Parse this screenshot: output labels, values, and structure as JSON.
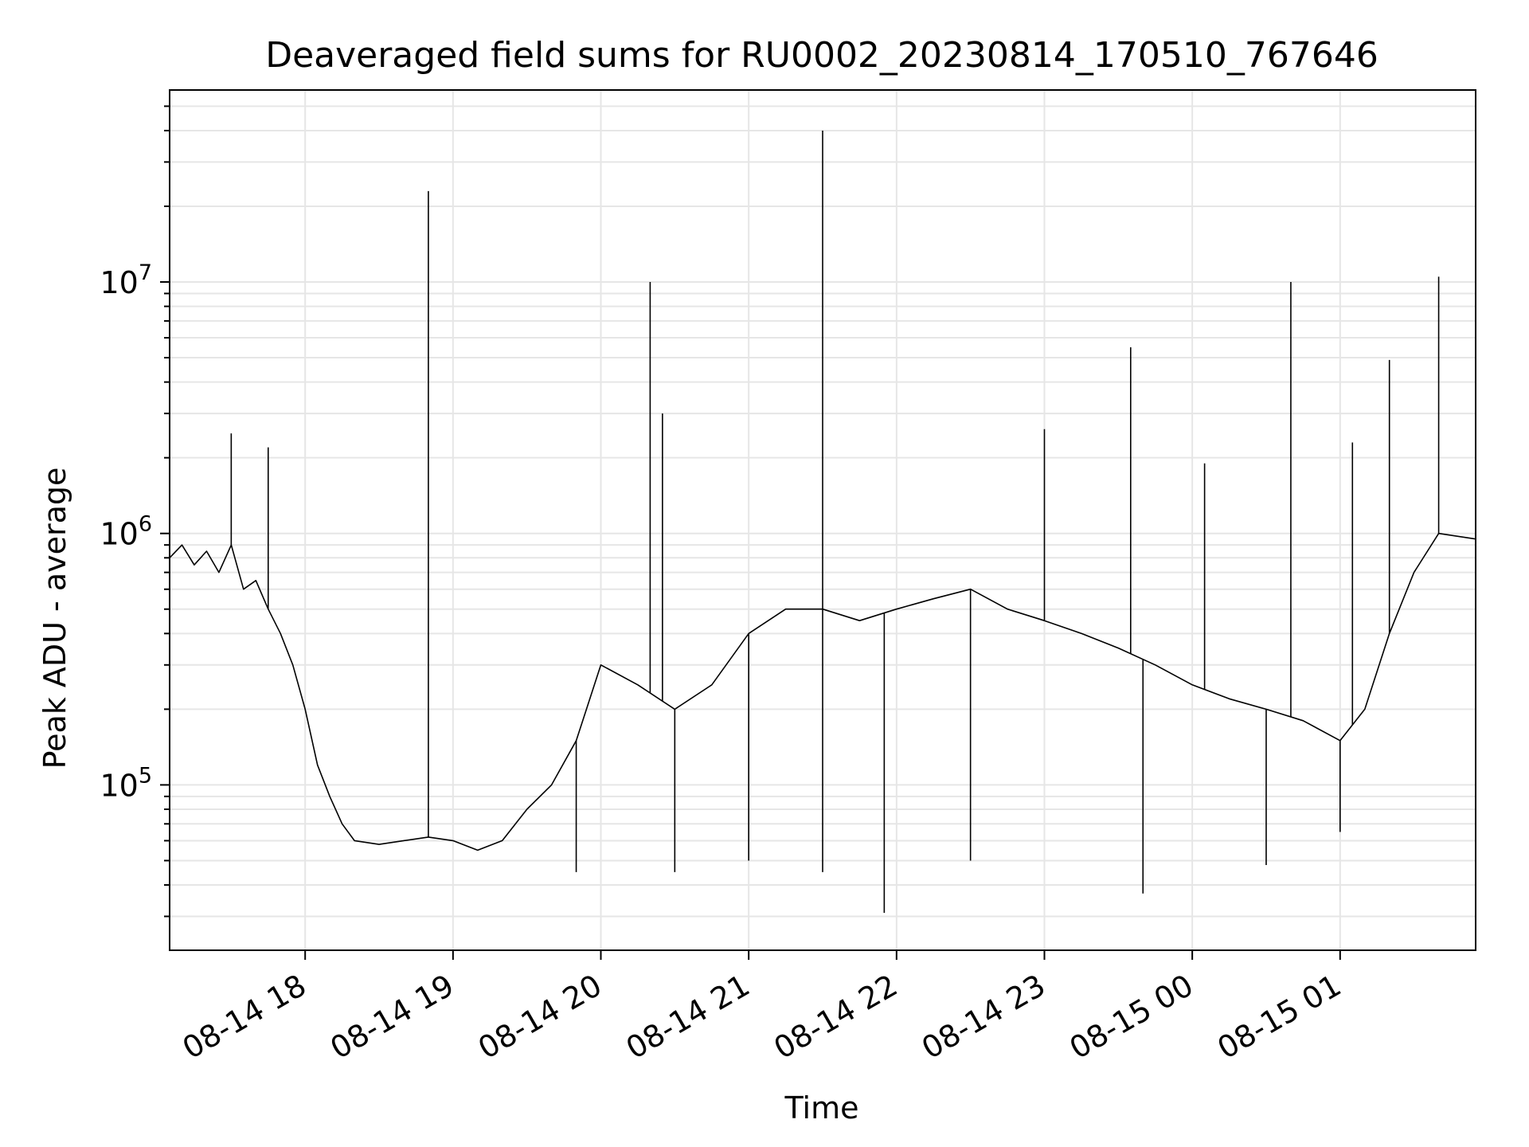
{
  "chart_data": {
    "type": "line",
    "title": "Deaveraged field sums for RU0002_20230814_170510_767646",
    "xlabel": "Time",
    "ylabel": "Peak ADU - average",
    "yscale": "log",
    "xlim": [
      "2023-08-14 17:05",
      "2023-08-15 01:55"
    ],
    "ylim": [
      22000,
      58000000
    ],
    "grid": true,
    "legend": "none",
    "colors": {
      "line": "#000000",
      "grid": "#e6e6e6",
      "axis": "#000000"
    },
    "x_ticks": [
      {
        "value": "2023-08-14 18:00",
        "label": "08-14 18"
      },
      {
        "value": "2023-08-14 19:00",
        "label": "08-14 19"
      },
      {
        "value": "2023-08-14 20:00",
        "label": "08-14 20"
      },
      {
        "value": "2023-08-14 21:00",
        "label": "08-14 21"
      },
      {
        "value": "2023-08-14 22:00",
        "label": "08-14 22"
      },
      {
        "value": "2023-08-14 23:00",
        "label": "08-14 23"
      },
      {
        "value": "2023-08-15 00:00",
        "label": "08-15 00"
      },
      {
        "value": "2023-08-15 01:00",
        "label": "08-15 01"
      }
    ],
    "y_ticks": [
      {
        "value": 100000,
        "base": "10",
        "exp": "5"
      },
      {
        "value": 1000000,
        "base": "10",
        "exp": "6"
      },
      {
        "value": 10000000,
        "base": "10",
        "exp": "7"
      }
    ],
    "series": [
      {
        "points": [
          [
            "2023-08-14 17:05",
            800000
          ],
          [
            "2023-08-14 17:10",
            900000
          ],
          [
            "2023-08-14 17:15",
            750000
          ],
          [
            "2023-08-14 17:20",
            850000
          ],
          [
            "2023-08-14 17:25",
            700000
          ],
          [
            "2023-08-14 17:30",
            900000
          ],
          [
            "2023-08-14 17:35",
            600000
          ],
          [
            "2023-08-14 17:40",
            650000
          ],
          [
            "2023-08-14 17:45",
            500000
          ],
          [
            "2023-08-14 17:50",
            400000
          ],
          [
            "2023-08-14 17:55",
            300000
          ],
          [
            "2023-08-14 18:00",
            200000
          ],
          [
            "2023-08-14 18:05",
            120000
          ],
          [
            "2023-08-14 18:10",
            90000
          ],
          [
            "2023-08-14 18:15",
            70000
          ],
          [
            "2023-08-14 18:20",
            60000
          ],
          [
            "2023-08-14 18:30",
            58000
          ],
          [
            "2023-08-14 18:40",
            60000
          ],
          [
            "2023-08-14 18:50",
            62000
          ],
          [
            "2023-08-14 19:00",
            60000
          ],
          [
            "2023-08-14 19:10",
            55000
          ],
          [
            "2023-08-14 19:20",
            60000
          ],
          [
            "2023-08-14 19:30",
            80000
          ],
          [
            "2023-08-14 19:40",
            100000
          ],
          [
            "2023-08-14 19:50",
            150000
          ],
          [
            "2023-08-14 20:00",
            300000
          ],
          [
            "2023-08-14 20:15",
            250000
          ],
          [
            "2023-08-14 20:30",
            200000
          ],
          [
            "2023-08-14 20:45",
            250000
          ],
          [
            "2023-08-14 21:00",
            400000
          ],
          [
            "2023-08-14 21:15",
            500000
          ],
          [
            "2023-08-14 21:30",
            500000
          ],
          [
            "2023-08-14 21:45",
            450000
          ],
          [
            "2023-08-14 22:00",
            500000
          ],
          [
            "2023-08-14 22:15",
            550000
          ],
          [
            "2023-08-14 22:30",
            600000
          ],
          [
            "2023-08-14 22:45",
            500000
          ],
          [
            "2023-08-14 23:00",
            450000
          ],
          [
            "2023-08-14 23:15",
            400000
          ],
          [
            "2023-08-14 23:30",
            350000
          ],
          [
            "2023-08-14 23:45",
            300000
          ],
          [
            "2023-08-15 00:00",
            250000
          ],
          [
            "2023-08-15 00:15",
            220000
          ],
          [
            "2023-08-15 00:30",
            200000
          ],
          [
            "2023-08-15 00:45",
            180000
          ],
          [
            "2023-08-15 01:00",
            150000
          ],
          [
            "2023-08-15 01:10",
            200000
          ],
          [
            "2023-08-15 01:20",
            400000
          ],
          [
            "2023-08-15 01:30",
            700000
          ],
          [
            "2023-08-15 01:40",
            1000000
          ],
          [
            "2023-08-15 01:55",
            950000
          ]
        ],
        "dips": [
          [
            "2023-08-14 19:50",
            45000
          ],
          [
            "2023-08-14 20:30",
            45000
          ],
          [
            "2023-08-14 21:00",
            50000
          ],
          [
            "2023-08-14 21:30",
            45000
          ],
          [
            "2023-08-14 21:55",
            31000
          ],
          [
            "2023-08-14 22:30",
            50000
          ],
          [
            "2023-08-14 23:40",
            37000
          ],
          [
            "2023-08-15 00:30",
            48000
          ],
          [
            "2023-08-15 01:00",
            65000
          ]
        ],
        "spikes": [
          [
            "2023-08-14 17:30",
            2500000
          ],
          [
            "2023-08-14 17:45",
            2200000
          ],
          [
            "2023-08-14 18:50",
            23000000
          ],
          [
            "2023-08-14 20:20",
            10000000
          ],
          [
            "2023-08-14 20:25",
            3000000
          ],
          [
            "2023-08-14 21:30",
            40000000
          ],
          [
            "2023-08-14 23:00",
            2600000
          ],
          [
            "2023-08-14 23:35",
            5500000
          ],
          [
            "2023-08-15 00:05",
            1900000
          ],
          [
            "2023-08-15 00:40",
            10000000
          ],
          [
            "2023-08-15 01:05",
            2300000
          ],
          [
            "2023-08-15 01:20",
            4900000
          ],
          [
            "2023-08-15 01:40",
            10500000
          ]
        ]
      }
    ]
  }
}
